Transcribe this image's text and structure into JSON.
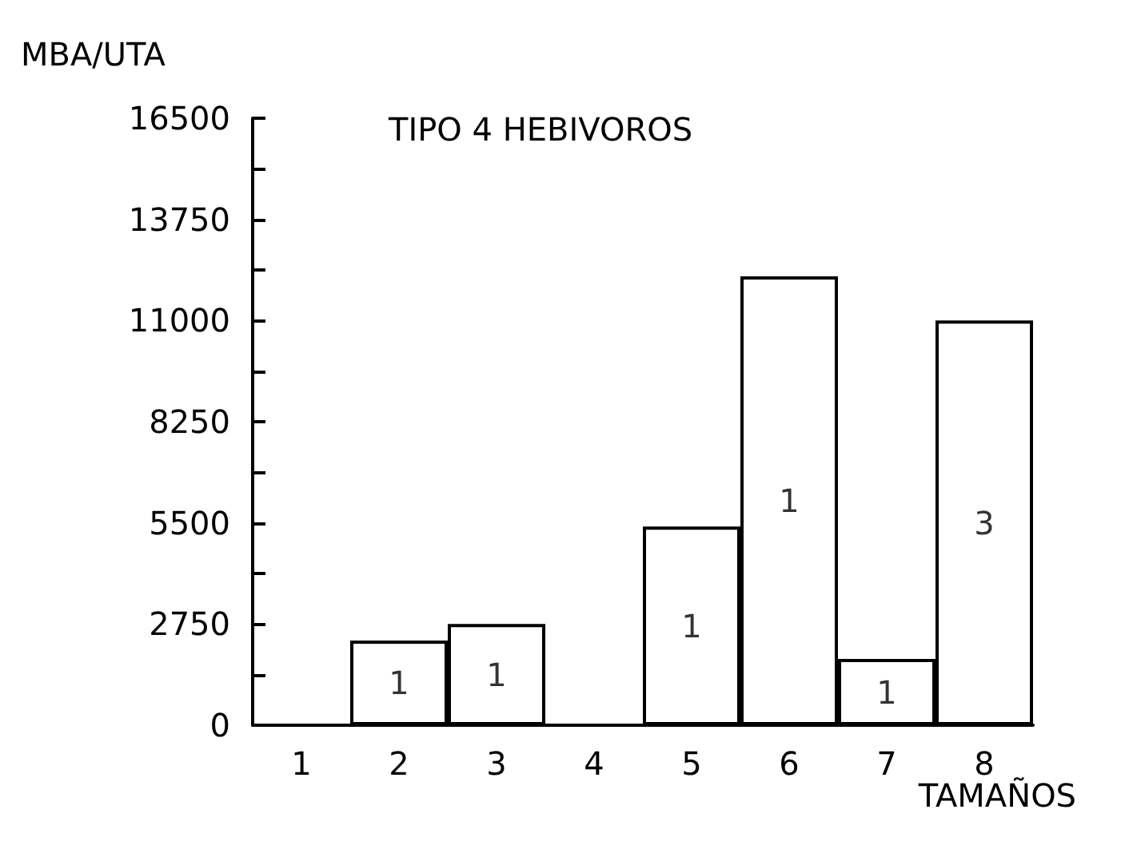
{
  "chart_data": {
    "type": "bar",
    "title": "TIPO 4 HEBIVOROS",
    "xlabel": "TAMAÑOS",
    "ylabel": "MBA/UTA",
    "categories": [
      "1",
      "2",
      "3",
      "4",
      "5",
      "6",
      "7",
      "8"
    ],
    "values": [
      null,
      2300,
      2750,
      null,
      5400,
      12200,
      1800,
      11000
    ],
    "color": "#ffffff",
    "ylim": [
      0,
      16500
    ],
    "yticks": [
      0,
      {
        "value": 1375,
        "label": null
      },
      2750,
      {
        "value": 4125,
        "label": null
      },
      5500,
      {
        "value": 6875,
        "label": null
      },
      8250,
      {
        "value": 9625,
        "label": null
      },
      11000,
      {
        "value": 12375,
        "label": null
      },
      13750,
      {
        "value": 15125,
        "label": null
      },
      16500
    ],
    "annotations": [
      "1",
      "1",
      "1",
      "1",
      "1",
      "3"
    ],
    "grid": false
  }
}
